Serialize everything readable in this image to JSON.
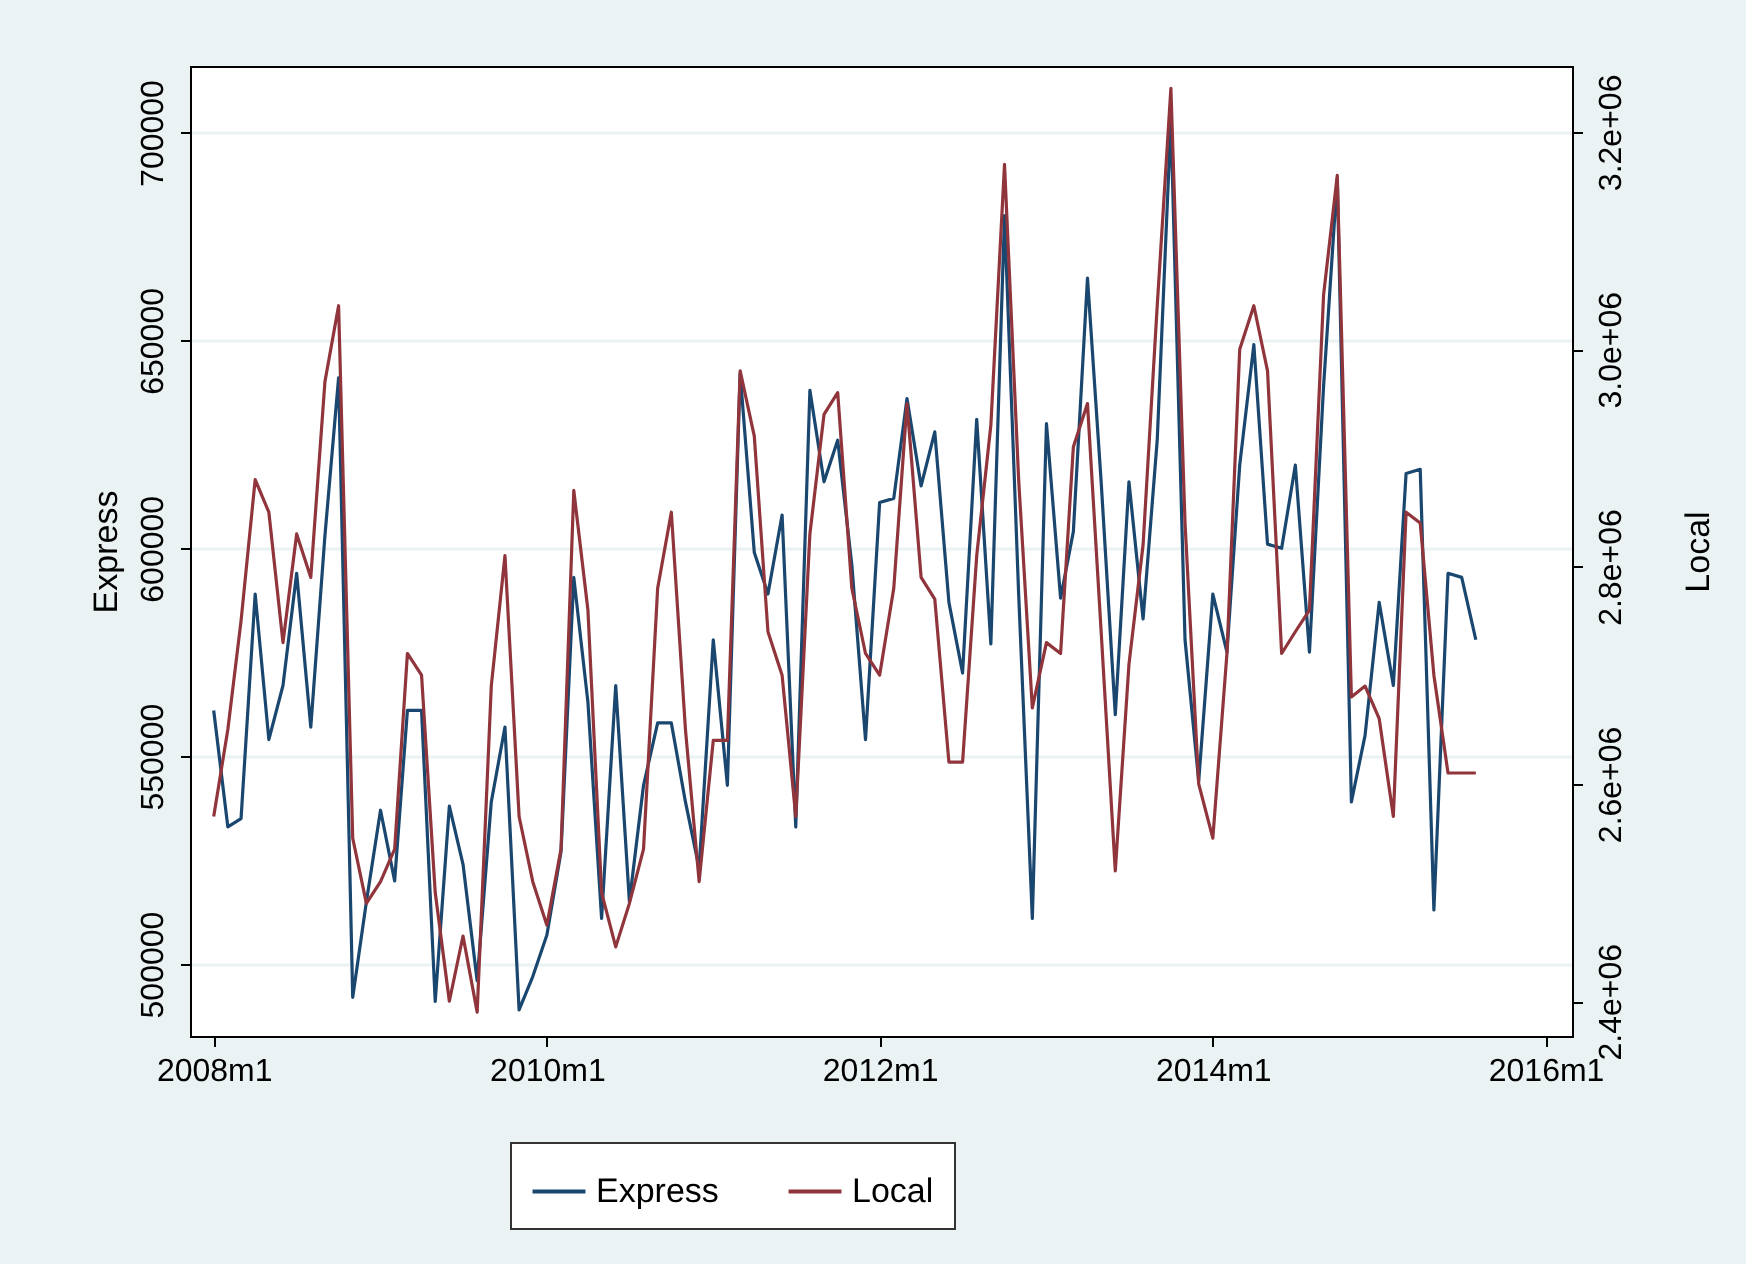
{
  "chart_data": {
    "type": "line",
    "ylabel": "Express",
    "y2label": "Local",
    "x": [
      "2008-01",
      "2008-02",
      "2008-03",
      "2008-04",
      "2008-05",
      "2008-06",
      "2008-07",
      "2008-08",
      "2008-09",
      "2008-10",
      "2008-11",
      "2008-12",
      "2009-01",
      "2009-02",
      "2009-03",
      "2009-04",
      "2009-05",
      "2009-06",
      "2009-07",
      "2009-08",
      "2009-09",
      "2009-10",
      "2009-11",
      "2009-12",
      "2010-01",
      "2010-02",
      "2010-03",
      "2010-04",
      "2010-05",
      "2010-06",
      "2010-07",
      "2010-08",
      "2010-09",
      "2010-10",
      "2010-11",
      "2010-12",
      "2011-01",
      "2011-02",
      "2011-03",
      "2011-04",
      "2011-05",
      "2011-06",
      "2011-07",
      "2011-08",
      "2011-09",
      "2011-10",
      "2011-11",
      "2011-12",
      "2012-01",
      "2012-02",
      "2012-03",
      "2012-04",
      "2012-05",
      "2012-06",
      "2012-07",
      "2012-08",
      "2012-09",
      "2012-10",
      "2012-11",
      "2012-12",
      "2013-01",
      "2013-02",
      "2013-03",
      "2013-04",
      "2013-05",
      "2013-06",
      "2013-07",
      "2013-08",
      "2013-09",
      "2013-10",
      "2013-11",
      "2013-12",
      "2014-01",
      "2014-02",
      "2014-03",
      "2014-04",
      "2014-05",
      "2014-06",
      "2014-07",
      "2014-08",
      "2014-09",
      "2014-10",
      "2014-11",
      "2014-12",
      "2015-01",
      "2015-02",
      "2015-03",
      "2015-04",
      "2015-05",
      "2015-06",
      "2015-07",
      "2015-08"
    ],
    "series": [
      {
        "name": "Express",
        "color": "#1a476f",
        "values": [
          561000,
          533000,
          535000,
          589000,
          554000,
          567000,
          594000,
          557000,
          603000,
          641000,
          492000,
          515000,
          537000,
          520000,
          561000,
          561000,
          491000,
          538000,
          524000,
          496000,
          539000,
          557000,
          489000,
          497000,
          507000,
          527000,
          593000,
          563000,
          511000,
          567000,
          515000,
          543000,
          558000,
          558000,
          539000,
          523000,
          578000,
          543000,
          642000,
          599000,
          589000,
          608000,
          533000,
          638000,
          616000,
          626000,
          596000,
          554000,
          611000,
          612000,
          636000,
          615000,
          628000,
          587000,
          570000,
          631000,
          577000,
          680000,
          589000,
          511000,
          630000,
          588000,
          604000,
          665000,
          616000,
          560000,
          616000,
          583000,
          626000,
          703000,
          578000,
          544000,
          589000,
          575000,
          620000,
          649000,
          601000,
          600000,
          620000,
          575000,
          639000,
          689000,
          539000,
          555000,
          587000,
          567000,
          618000,
          619000,
          513000,
          594000,
          593000,
          578000
        ]
      },
      {
        "name": "Local",
        "color": "#90353b",
        "axis": "y2",
        "values": [
          2570000,
          2650000,
          2750000,
          2880000,
          2850000,
          2730000,
          2830000,
          2790000,
          2970000,
          3040000,
          2550000,
          2490000,
          2510000,
          2540000,
          2720000,
          2700000,
          2500000,
          2400000,
          2460000,
          2390000,
          2690000,
          2810000,
          2570000,
          2510000,
          2470000,
          2540000,
          2870000,
          2760000,
          2500000,
          2450000,
          2490000,
          2540000,
          2780000,
          2850000,
          2650000,
          2510000,
          2640000,
          2640000,
          2980000,
          2920000,
          2740000,
          2700000,
          2570000,
          2830000,
          2940000,
          2960000,
          2780000,
          2720000,
          2700000,
          2780000,
          2950000,
          2790000,
          2770000,
          2620000,
          2620000,
          2810000,
          2930000,
          3170000,
          2880000,
          2670000,
          2730000,
          2720000,
          2910000,
          2950000,
          2740000,
          2520000,
          2710000,
          2820000,
          3040000,
          3240000,
          2840000,
          2600000,
          2550000,
          2720000,
          3000000,
          3040000,
          2980000,
          2720000,
          2740000,
          2760000,
          3050000,
          3160000,
          2680000,
          2690000,
          2660000,
          2570000,
          2850000,
          2840000,
          2700000,
          2610000,
          2610000,
          2610000
        ]
      }
    ],
    "xlim": [
      "2007-11-10",
      "2016-02-28"
    ],
    "xticks": [
      {
        "value": "2008-01",
        "label": "2008m1"
      },
      {
        "value": "2010-01",
        "label": "2010m1"
      },
      {
        "value": "2012-01",
        "label": "2012m1"
      },
      {
        "value": "2014-01",
        "label": "2014m1"
      },
      {
        "value": "2016-01",
        "label": "2016m1"
      }
    ],
    "ylim": [
      482700,
      716000
    ],
    "yticks": [
      500000,
      550000,
      600000,
      650000,
      700000
    ],
    "y2lim": [
      2368000,
      3260600
    ],
    "y2ticks": [
      {
        "value": 2400000,
        "label": "2.4e+06"
      },
      {
        "value": 2600000,
        "label": "2.6e+06"
      },
      {
        "value": 2800000,
        "label": "2.8e+06"
      },
      {
        "value": 3000000,
        "label": "3.0e+06"
      },
      {
        "value": 3200000,
        "label": "3.2e+06"
      }
    ],
    "grid": "y",
    "legend": "bottom"
  }
}
